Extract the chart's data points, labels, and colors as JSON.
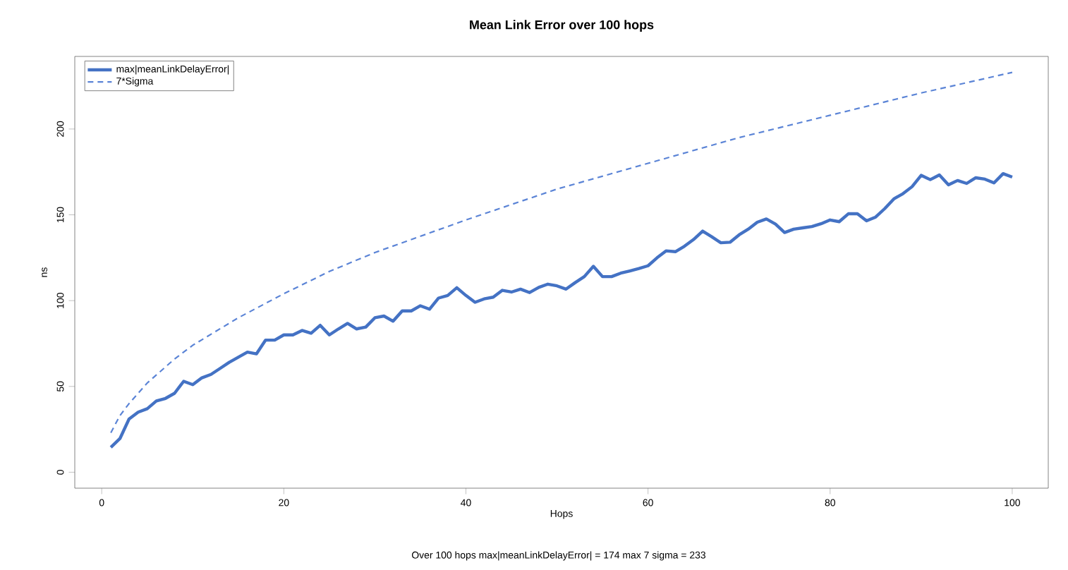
{
  "chart_data": {
    "type": "line",
    "title": "Mean Link Error over 100 hops",
    "xlabel": "Hops",
    "ylabel": "ns",
    "annotations": [
      "Over 100 hops   max|meanLinkDelayError| = 174   max 7 sigma = 233"
    ],
    "xlim": [
      -2.96,
      103.96
    ],
    "ylim": [
      -9.3,
      242.3
    ],
    "xticks": [
      0,
      20,
      40,
      60,
      80,
      100
    ],
    "yticks": [
      0,
      50,
      100,
      150,
      200
    ],
    "legend": "top left",
    "grid": false,
    "marker": "none",
    "series": [
      {
        "name": "max|meanLinkDelayError|",
        "color": "#4472c4",
        "line_style": "solid",
        "x": [
          1,
          2,
          3,
          4,
          5,
          6,
          7,
          8,
          9,
          10,
          11,
          12,
          13,
          14,
          15,
          16,
          17,
          18,
          19,
          20,
          21,
          22,
          23,
          24,
          25,
          26,
          27,
          28,
          29,
          30,
          31,
          32,
          33,
          34,
          35,
          36,
          37,
          38,
          39,
          40,
          41,
          42,
          43,
          44,
          45,
          46,
          47,
          48,
          49,
          50,
          51,
          52,
          53,
          54,
          55,
          56,
          57,
          58,
          59,
          60,
          61,
          62,
          63,
          64,
          65,
          66,
          67,
          68,
          69,
          70,
          71,
          72,
          73,
          74,
          75,
          76,
          77,
          78,
          79,
          80,
          81,
          82,
          83,
          84,
          85,
          86,
          87,
          88,
          89,
          90,
          91,
          92,
          93,
          94,
          95,
          96,
          97,
          98,
          99,
          100
        ],
        "values": [
          14.5,
          19.6,
          31,
          35,
          37,
          41.5,
          43,
          46,
          53,
          51,
          55,
          57,
          60.5,
          64,
          67,
          70,
          69,
          77,
          77,
          80,
          80,
          82.6,
          81,
          85.6,
          80,
          83.5,
          86.7,
          83.5,
          84.6,
          90,
          91,
          88,
          94,
          94,
          97,
          95,
          101.5,
          103,
          107.5,
          103,
          99,
          101,
          102,
          106,
          105,
          106.7,
          104.7,
          107.7,
          109.6,
          108.6,
          106.7,
          110.5,
          114,
          120,
          114,
          114,
          116,
          117.3,
          118.7,
          120.3,
          125,
          129,
          128.5,
          131.7,
          135.6,
          140.5,
          137.2,
          133.7,
          134,
          138.3,
          141.6,
          145.7,
          147.6,
          144.6,
          139.7,
          141.6,
          142.4,
          143.2,
          144.8,
          147,
          146,
          150.6,
          150.6,
          146.5,
          148.7,
          153.6,
          159.3,
          162.3,
          166.4,
          173,
          170.5,
          173.2,
          167.5,
          170,
          168.3,
          171.6,
          170.8,
          168.6,
          174,
          172
        ]
      },
      {
        "name": "7*Sigma",
        "color": "#5b84d6",
        "line_style": "dashed",
        "x": [
          1,
          2,
          3,
          5,
          8,
          10,
          15,
          20,
          25,
          30,
          40,
          50,
          60,
          70,
          80,
          90,
          100
        ],
        "values": [
          23,
          33,
          40,
          52,
          66,
          74,
          90,
          104,
          117,
          128,
          147,
          165,
          180,
          195,
          208,
          221,
          233
        ]
      }
    ]
  }
}
